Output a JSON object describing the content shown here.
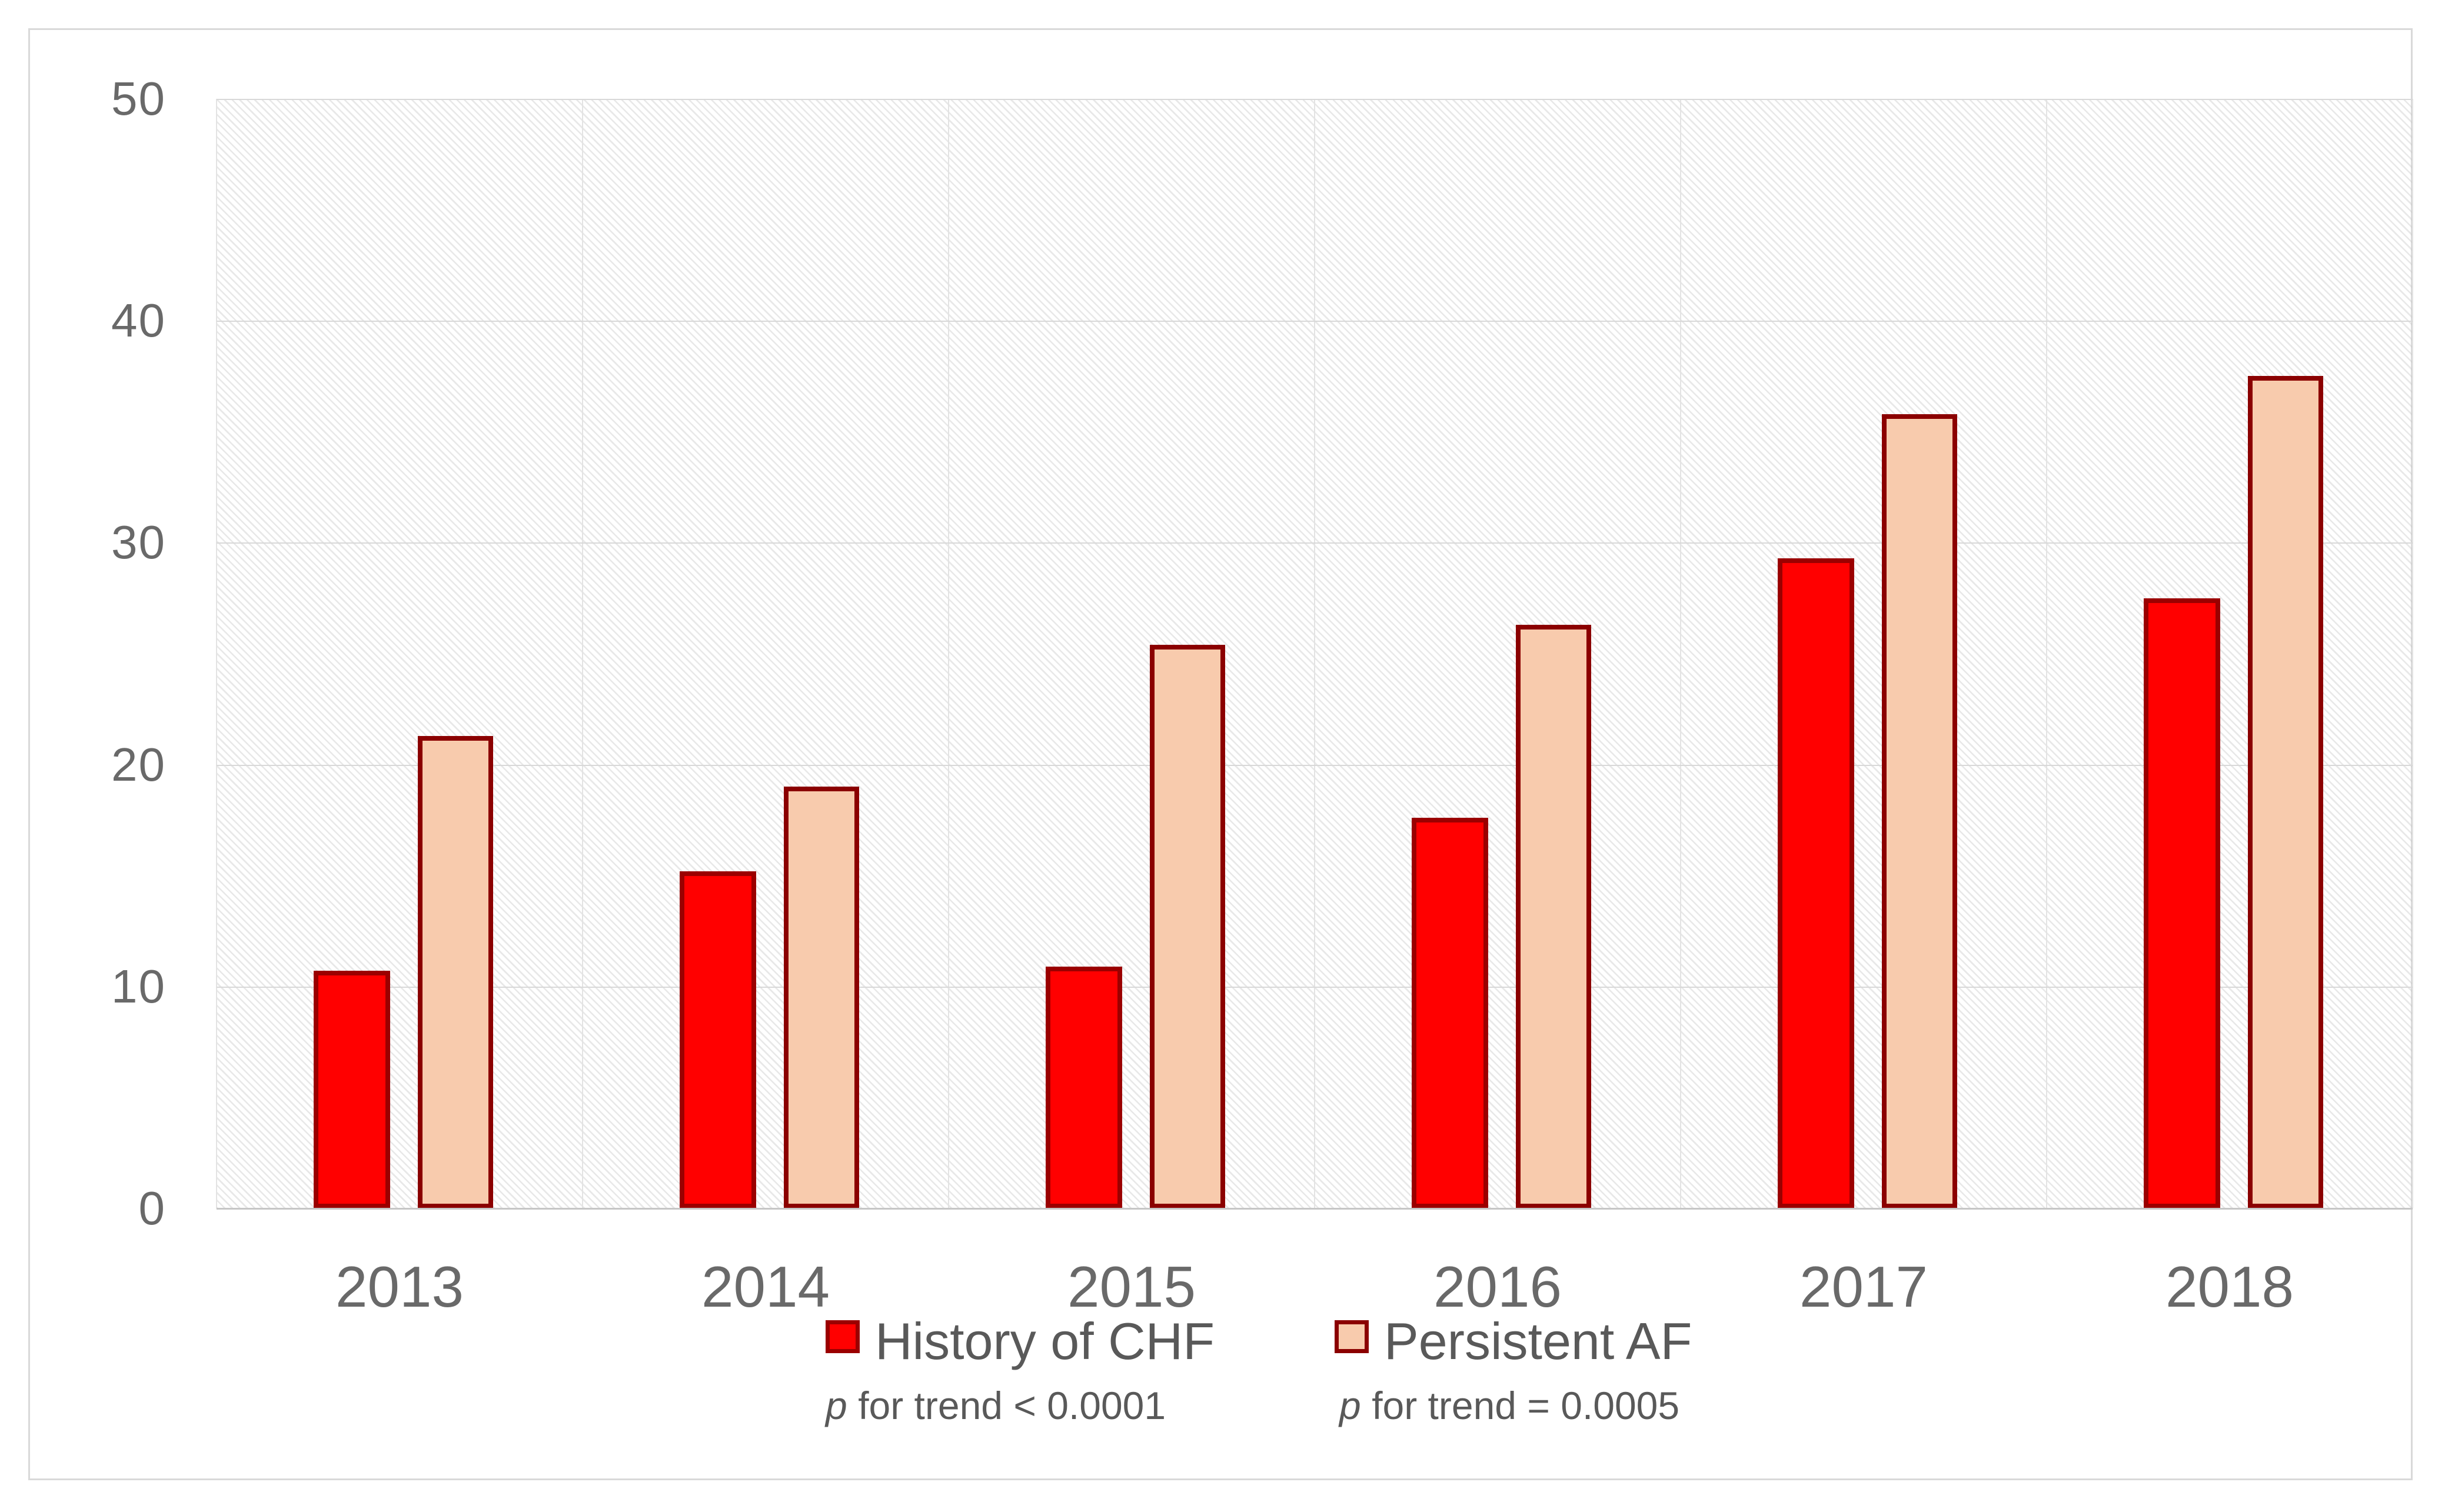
{
  "chart_data": {
    "type": "bar",
    "title": "",
    "categories": [
      "2013",
      "2014",
      "2015",
      "2016",
      "2017",
      "2018"
    ],
    "series": [
      {
        "name": "History of CHF",
        "key": "history-of-chf",
        "fill": "#FF0000",
        "border": "#9B0000",
        "values": [
          10.7,
          15.2,
          10.9,
          17.6,
          29.3,
          27.5
        ],
        "trend_note": {
          "p_symbol": "p",
          "text": "for trend < 0.0001"
        }
      },
      {
        "name": "Persistent AF",
        "key": "persistent-af",
        "fill": "#F8CBAD",
        "border": "#8B0000",
        "values": [
          21.3,
          19.0,
          25.4,
          26.3,
          35.8,
          37.5
        ],
        "trend_note": {
          "p_symbol": "p",
          "text": "for trend = 0.0005"
        }
      }
    ],
    "xlabel": "",
    "ylabel": "",
    "ylim": [
      0,
      50
    ],
    "yticks": [
      0,
      10,
      20,
      30,
      40,
      50
    ],
    "grid": {
      "horizontal": true,
      "vertical_category_boundaries": true
    },
    "legend_position": "bottom-center",
    "plot_background": "light diagonal hatch",
    "colors": {
      "gridline": "#D8D8D8",
      "axis_text": "#696969",
      "legend_text": "#595959",
      "frame": "#D9D9D9"
    }
  }
}
